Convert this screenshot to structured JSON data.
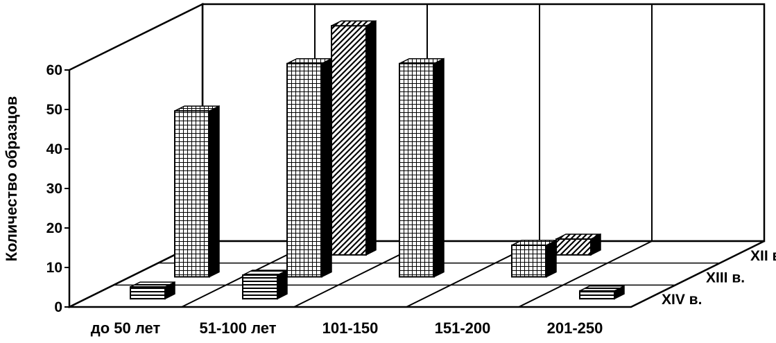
{
  "chart_data": {
    "type": "bar",
    "subtype": "3d-bar",
    "ylabel": "Количество образцов",
    "ylim": [
      0,
      60
    ],
    "yticks": [
      0,
      10,
      20,
      30,
      40,
      50,
      60
    ],
    "categories": [
      "до 50 лет",
      "51-100 лет",
      "101-150",
      "151-200",
      "201-250"
    ],
    "series": [
      {
        "name": "XIV в.",
        "values": [
          3,
          6,
          0,
          0,
          2
        ]
      },
      {
        "name": "XIII в.",
        "values": [
          42,
          54,
          54,
          8,
          0
        ]
      },
      {
        "name": "XII в.",
        "values": [
          0,
          58,
          0,
          4,
          0
        ]
      }
    ],
    "grid": true,
    "colors": {
      "ink": "#000000",
      "background": "#ffffff"
    }
  }
}
